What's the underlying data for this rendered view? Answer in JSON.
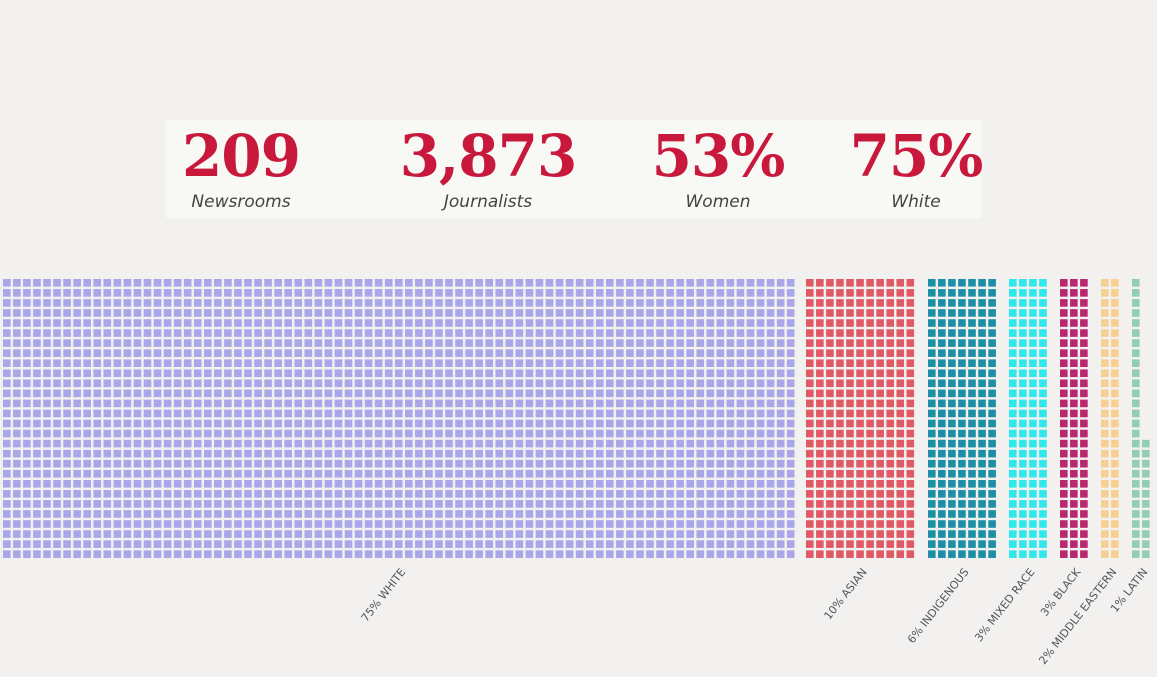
{
  "stats": [
    {
      "value": "209",
      "label": "Newsrooms"
    },
    {
      "value": "3,873",
      "label": "Journalists"
    },
    {
      "value": "53%",
      "label": "Women"
    },
    {
      "value": "75%",
      "label": "White"
    }
  ],
  "chart_data": {
    "type": "waffle",
    "title": "",
    "unit_description": "each square = one journalist",
    "total": 3873,
    "categories": [
      {
        "label": "75% WHITE",
        "percent": 75,
        "color": "#aaa6ea"
      },
      {
        "label": "10% ASIAN",
        "percent": 10,
        "color": "#e05a66"
      },
      {
        "label": "6% INDIGENOUS",
        "percent": 6,
        "color": "#1c8fa6"
      },
      {
        "label": "3% MIXED RACE",
        "percent": 3,
        "color": "#2ee8ec"
      },
      {
        "label": "3% BLACK",
        "percent": 3,
        "color": "#b8286e"
      },
      {
        "label": "2% MIDDLE EASTERN",
        "percent": 2,
        "color": "#f7cf90"
      },
      {
        "label": "1% LATIN",
        "percent": 1,
        "color": "#93ceb4"
      }
    ]
  }
}
